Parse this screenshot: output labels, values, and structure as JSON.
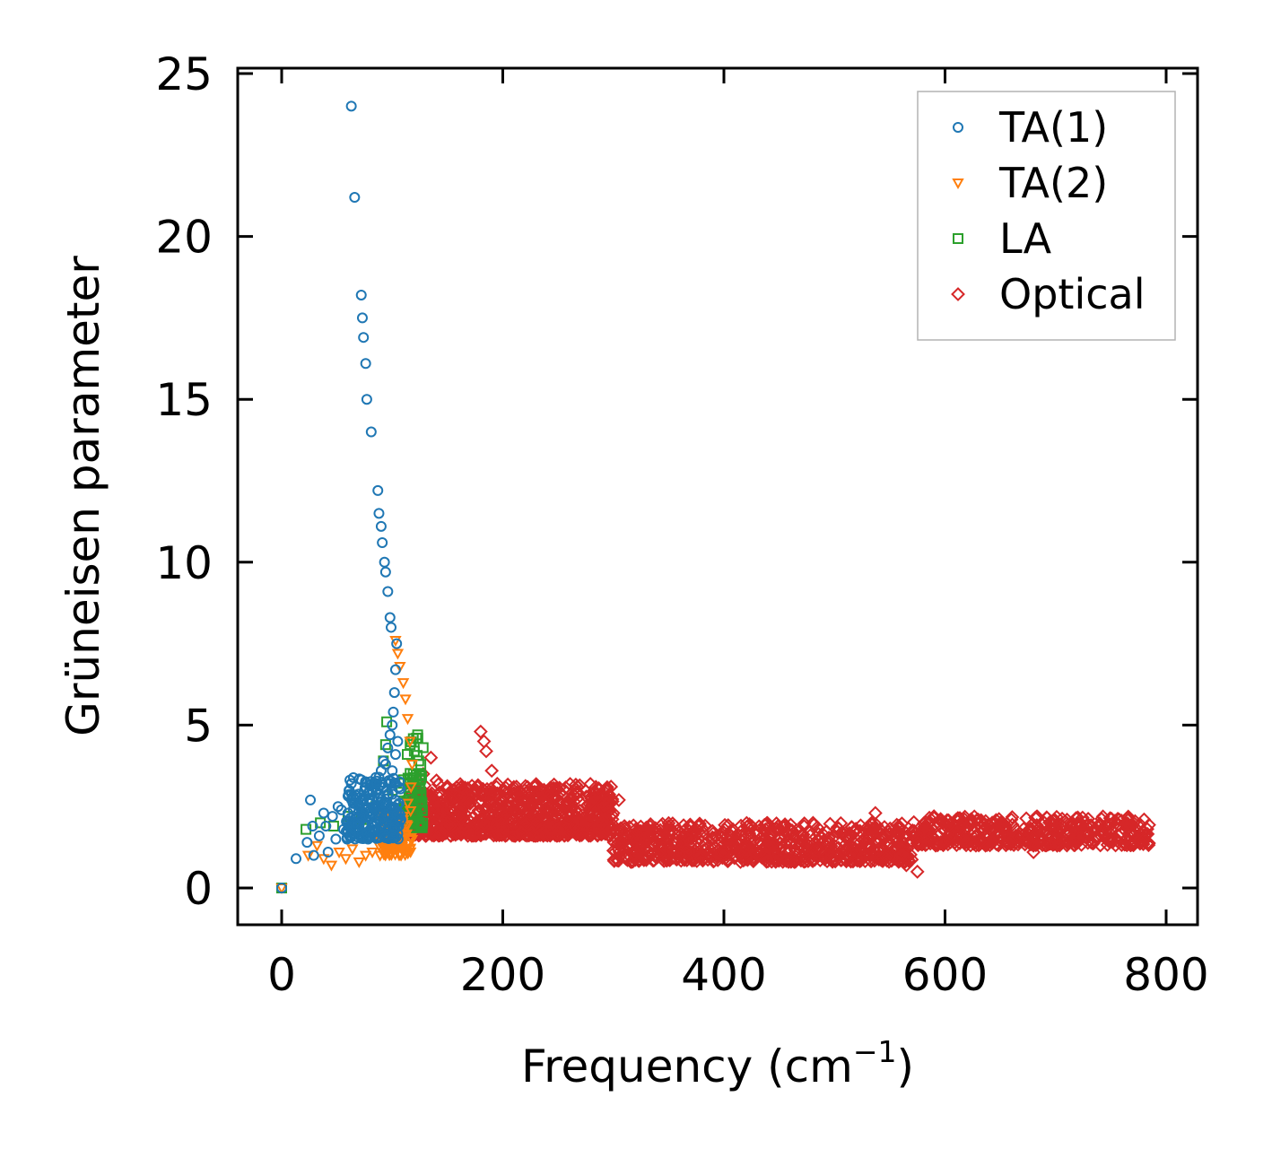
{
  "chart_data": {
    "type": "scatter",
    "title": "",
    "xlabel": "Frequency (cm",
    "xlabel_sup": "−1",
    "xlabel_close": ")",
    "ylabel": "Grüneisen parameter",
    "xlim": [
      -40,
      825
    ],
    "ylim": [
      -1.2,
      25.3
    ],
    "xticks": [
      0,
      200,
      400,
      600,
      800
    ],
    "yticks": [
      0,
      5,
      10,
      15,
      20,
      25
    ],
    "xtick_labels": [
      "0",
      "200",
      "400",
      "600",
      "800"
    ],
    "ytick_labels": [
      "0",
      "5",
      "10",
      "15",
      "20",
      "25"
    ],
    "grid": false,
    "legend_position": "top-right",
    "series": [
      {
        "name": "TA(1)",
        "marker": "circle",
        "color": "#1f77b4",
        "points": [
          [
            0,
            0
          ],
          [
            13,
            0.9
          ],
          [
            23,
            1.4
          ],
          [
            26,
            2.7
          ],
          [
            28,
            1.9
          ],
          [
            29,
            1.0
          ],
          [
            34,
            1.6
          ],
          [
            38,
            2.3
          ],
          [
            40,
            1.9
          ],
          [
            42,
            1.1
          ],
          [
            46,
            2.2
          ],
          [
            49,
            1.5
          ],
          [
            51,
            2.5
          ],
          [
            54,
            2.4
          ],
          [
            56,
            1.8
          ],
          [
            60,
            2.3
          ],
          [
            63,
            1.6
          ],
          [
            65,
            2.2
          ],
          [
            68,
            2.0
          ],
          [
            70,
            2.5
          ],
          [
            72,
            2.1
          ],
          [
            74,
            2.7
          ],
          [
            76,
            2.4
          ],
          [
            78,
            2.9
          ],
          [
            80,
            2.6
          ],
          [
            82,
            3.0
          ],
          [
            84,
            2.8
          ],
          [
            86,
            3.2
          ],
          [
            88,
            3.4
          ],
          [
            90,
            3.6
          ],
          [
            92,
            3.9
          ],
          [
            94,
            3.8
          ],
          [
            96,
            4.3
          ],
          [
            98,
            4.7
          ],
          [
            100,
            5.0
          ],
          [
            101,
            5.4
          ],
          [
            102,
            6.0
          ],
          [
            103,
            6.7
          ],
          [
            104,
            7.5
          ],
          [
            99,
            8.0
          ],
          [
            98,
            8.3
          ],
          [
            96,
            9.1
          ],
          [
            94,
            9.7
          ],
          [
            93,
            10.0
          ],
          [
            91,
            10.6
          ],
          [
            90,
            11.1
          ],
          [
            88,
            11.5
          ],
          [
            87,
            12.2
          ],
          [
            81,
            14.0
          ],
          [
            77,
            15.0
          ],
          [
            76,
            16.1
          ],
          [
            74,
            16.9
          ],
          [
            73,
            17.5
          ],
          [
            72,
            18.2
          ],
          [
            66,
            21.2
          ],
          [
            63,
            24.0
          ],
          [
            85,
            2.2
          ],
          [
            89,
            2.4
          ],
          [
            92,
            2.6
          ],
          [
            95,
            3.0
          ],
          [
            97,
            3.3
          ],
          [
            100,
            3.6
          ],
          [
            103,
            4.1
          ],
          [
            105,
            4.5
          ],
          [
            66,
            2.0
          ],
          [
            61,
            1.9
          ],
          [
            79,
            2.2
          ],
          [
            83,
            2.5
          ]
        ]
      },
      {
        "name": "TA(2)",
        "marker": "triangle-down",
        "color": "#ff7f0e",
        "points": [
          [
            0,
            0
          ],
          [
            24,
            1.0
          ],
          [
            32,
            1.3
          ],
          [
            38,
            0.9
          ],
          [
            45,
            0.7
          ],
          [
            52,
            1.1
          ],
          [
            58,
            0.9
          ],
          [
            64,
            1.2
          ],
          [
            70,
            0.8
          ],
          [
            76,
            1.0
          ],
          [
            82,
            1.1
          ],
          [
            88,
            1.3
          ],
          [
            94,
            1.4
          ],
          [
            98,
            1.2
          ],
          [
            102,
            1.5
          ],
          [
            106,
            1.8
          ],
          [
            110,
            2.2
          ],
          [
            114,
            2.6
          ],
          [
            117,
            3.1
          ],
          [
            118,
            3.8
          ],
          [
            116,
            4.5
          ],
          [
            114,
            5.2
          ],
          [
            112,
            5.8
          ],
          [
            110,
            6.3
          ],
          [
            107,
            6.8
          ],
          [
            105,
            7.2
          ],
          [
            103,
            7.6
          ],
          [
            100,
            1.6
          ],
          [
            96,
            1.7
          ],
          [
            108,
            1.3
          ],
          [
            112,
            1.6
          ]
        ]
      },
      {
        "name": "LA",
        "marker": "square",
        "color": "#2ca02c",
        "points": [
          [
            0,
            0
          ],
          [
            22,
            1.8
          ],
          [
            35,
            2.0
          ],
          [
            47,
            1.9
          ],
          [
            60,
            2.2
          ],
          [
            72,
            2.1
          ],
          [
            85,
            2.5
          ],
          [
            92,
            3.9
          ],
          [
            94,
            4.4
          ],
          [
            95,
            5.1
          ],
          [
            100,
            3.0
          ],
          [
            104,
            2.2
          ],
          [
            108,
            1.8
          ],
          [
            112,
            2.5
          ],
          [
            116,
            3.0
          ],
          [
            119,
            3.5
          ],
          [
            120,
            4.2
          ],
          [
            122,
            4.6
          ],
          [
            124,
            3.9
          ],
          [
            125,
            3.3
          ],
          [
            126,
            2.8
          ],
          [
            127,
            2.4
          ],
          [
            123,
            4.7
          ],
          [
            118,
            2.0
          ],
          [
            110,
            1.6
          ]
        ]
      },
      {
        "name": "Optical",
        "marker": "diamond",
        "color": "#d62728",
        "points": [
          [
            105,
            2.0
          ],
          [
            112,
            2.4
          ],
          [
            120,
            2.8
          ],
          [
            128,
            3.5
          ],
          [
            135,
            4.0
          ],
          [
            140,
            3.3
          ],
          [
            145,
            2.6
          ],
          [
            150,
            2.0
          ],
          [
            155,
            3.0
          ],
          [
            160,
            2.2
          ],
          [
            165,
            1.8
          ],
          [
            170,
            2.6
          ],
          [
            175,
            3.0
          ],
          [
            180,
            4.8
          ],
          [
            183,
            4.5
          ],
          [
            185,
            4.2
          ],
          [
            190,
            3.6
          ],
          [
            195,
            3.2
          ],
          [
            200,
            2.7
          ],
          [
            205,
            2.9
          ],
          [
            210,
            3.1
          ],
          [
            215,
            2.5
          ],
          [
            220,
            3.0
          ],
          [
            225,
            2.6
          ],
          [
            230,
            2.8
          ],
          [
            240,
            2.6
          ],
          [
            250,
            2.4
          ],
          [
            260,
            2.3
          ],
          [
            270,
            2.1
          ],
          [
            280,
            2.2
          ],
          [
            290,
            2.0
          ],
          [
            300,
            2.3
          ],
          [
            305,
            2.7
          ],
          [
            310,
            1.9
          ],
          [
            320,
            1.8
          ],
          [
            330,
            1.7
          ],
          [
            340,
            1.6
          ],
          [
            350,
            1.5
          ],
          [
            360,
            1.6
          ],
          [
            370,
            1.4
          ],
          [
            380,
            1.6
          ],
          [
            390,
            1.5
          ],
          [
            400,
            1.7
          ],
          [
            410,
            1.3
          ],
          [
            415,
            0.8
          ],
          [
            420,
            1.2
          ],
          [
            430,
            1.4
          ],
          [
            440,
            1.3
          ],
          [
            450,
            1.2
          ],
          [
            460,
            1.4
          ],
          [
            470,
            1.3
          ],
          [
            480,
            1.2
          ],
          [
            490,
            1.4
          ],
          [
            500,
            1.3
          ],
          [
            510,
            1.2
          ],
          [
            520,
            1.1
          ],
          [
            530,
            1.3
          ],
          [
            537,
            2.3
          ],
          [
            545,
            1.5
          ],
          [
            555,
            1.2
          ],
          [
            565,
            0.7
          ],
          [
            575,
            0.5
          ],
          [
            580,
            1.8
          ],
          [
            590,
            2.2
          ],
          [
            600,
            2.0
          ],
          [
            610,
            2.1
          ],
          [
            620,
            1.9
          ],
          [
            630,
            2.1
          ],
          [
            640,
            1.8
          ],
          [
            650,
            2.0
          ],
          [
            660,
            2.1
          ],
          [
            670,
            1.6
          ],
          [
            680,
            1.1
          ],
          [
            690,
            2.0
          ],
          [
            700,
            1.9
          ],
          [
            710,
            2.0
          ],
          [
            720,
            2.0
          ],
          [
            730,
            1.7
          ],
          [
            740,
            1.9
          ],
          [
            750,
            1.8
          ],
          [
            760,
            1.7
          ],
          [
            770,
            1.6
          ],
          [
            780,
            1.5
          ],
          [
            150,
            1.9
          ],
          [
            200,
            1.7
          ],
          [
            250,
            1.8
          ],
          [
            300,
            1.6
          ],
          [
            350,
            1.3
          ],
          [
            400,
            1.1
          ],
          [
            450,
            1.0
          ],
          [
            500,
            0.9
          ],
          [
            560,
            1.0
          ],
          [
            620,
            1.4
          ],
          [
            680,
            1.3
          ],
          [
            720,
            1.5
          ]
        ]
      }
    ],
    "clouds": [
      {
        "series": "TA(1)",
        "color": "#1f77b4",
        "xmin": 58,
        "xmax": 108,
        "ymin": 1.5,
        "ymax": 3.4,
        "count": 220,
        "marker": "circle"
      },
      {
        "series": "TA(2)",
        "color": "#ff7f0e",
        "xmin": 88,
        "xmax": 118,
        "ymin": 1.0,
        "ymax": 2.4,
        "count": 90,
        "marker": "triangle-down"
      },
      {
        "series": "LA",
        "color": "#2ca02c",
        "xmin": 110,
        "xmax": 128,
        "ymin": 1.8,
        "ymax": 4.6,
        "count": 70,
        "marker": "square"
      },
      {
        "series": "Optical",
        "color": "#d62728",
        "xmin": 110,
        "xmax": 300,
        "ymin": 1.6,
        "ymax": 3.2,
        "count": 900,
        "marker": "diamond"
      },
      {
        "series": "Optical",
        "color": "#d62728",
        "xmin": 300,
        "xmax": 570,
        "ymin": 0.8,
        "ymax": 2.0,
        "count": 700,
        "marker": "diamond"
      },
      {
        "series": "Optical",
        "color": "#d62728",
        "xmin": 570,
        "xmax": 785,
        "ymin": 1.3,
        "ymax": 2.2,
        "count": 450,
        "marker": "diamond"
      }
    ]
  }
}
